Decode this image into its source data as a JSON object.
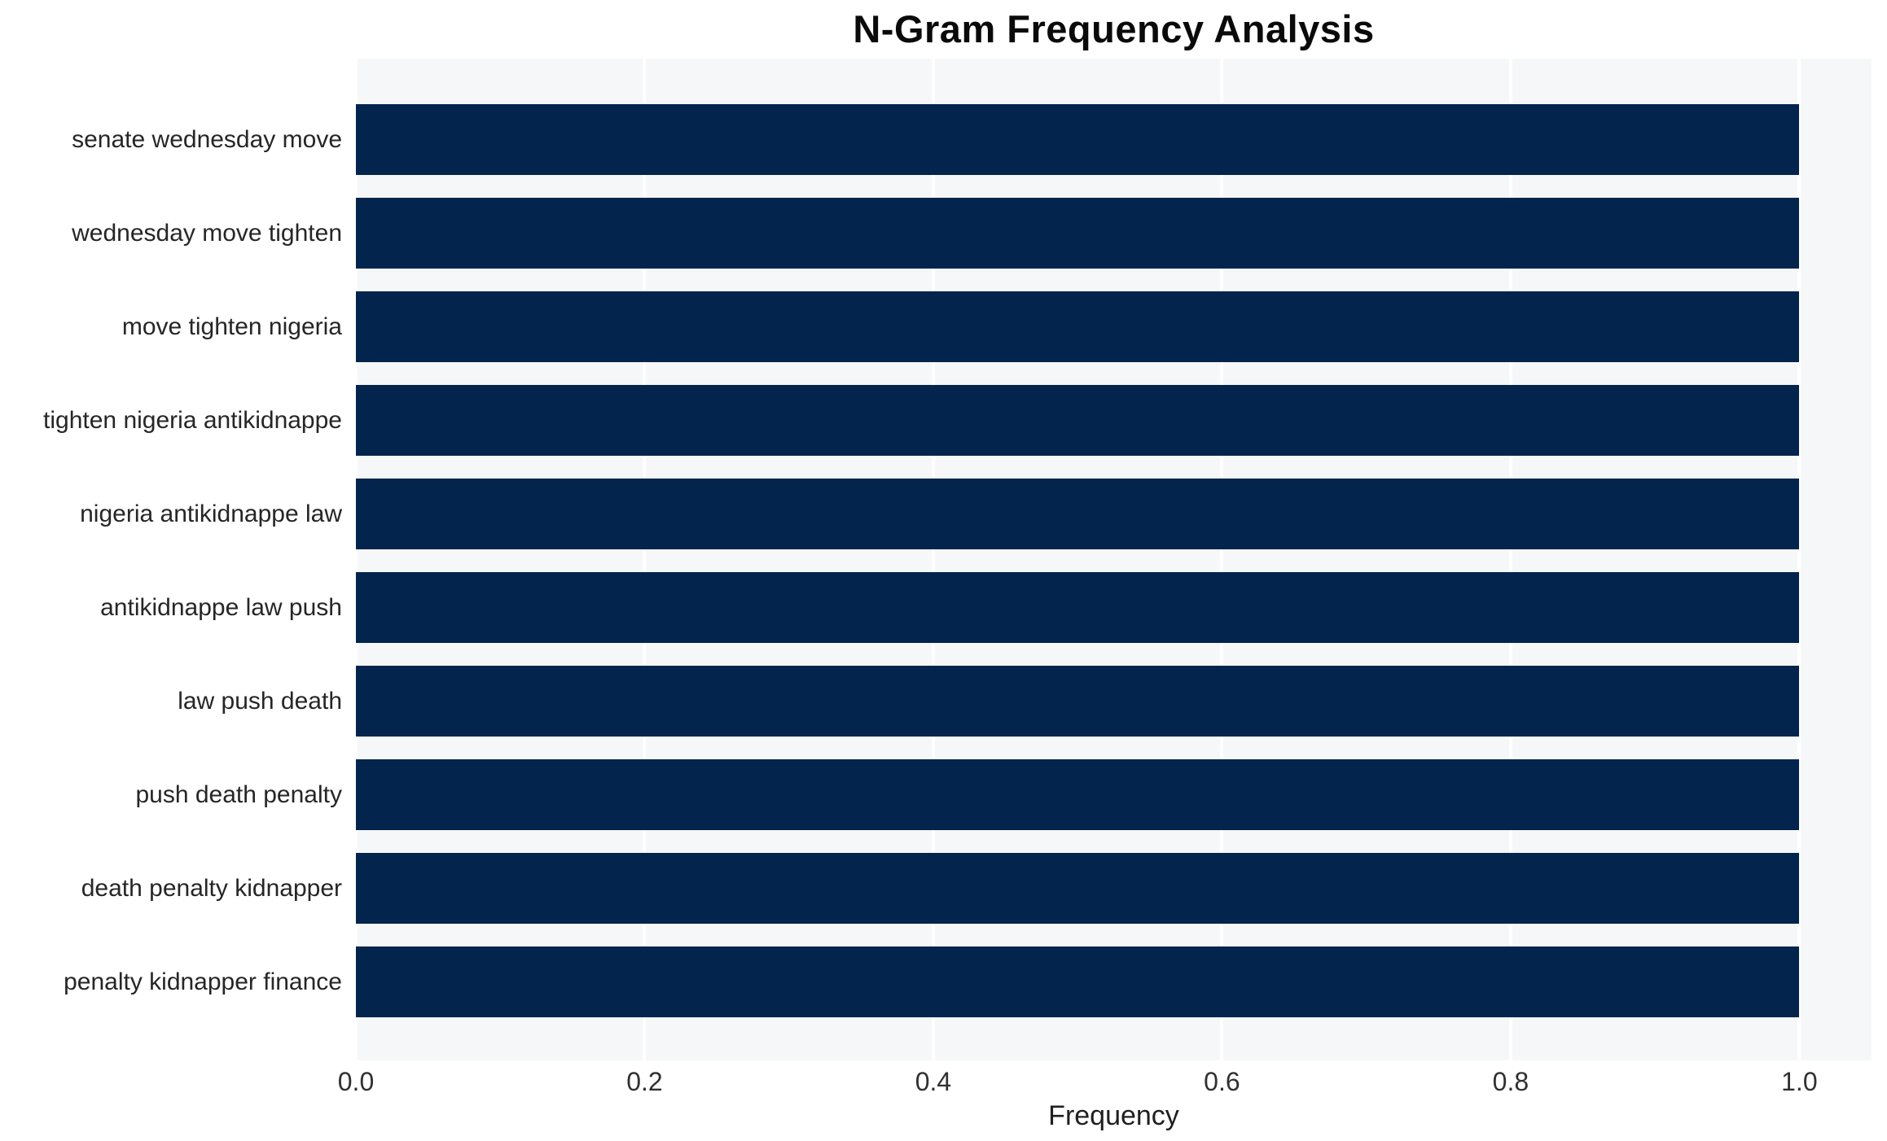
{
  "chart_data": {
    "type": "bar",
    "orientation": "horizontal",
    "title": "N-Gram Frequency Analysis",
    "categories": [
      "senate wednesday move",
      "wednesday move tighten",
      "move tighten nigeria",
      "tighten nigeria antikidnappe",
      "nigeria antikidnappe law",
      "antikidnappe law push",
      "law push death",
      "push death penalty",
      "death penalty kidnapper",
      "penalty kidnapper finance"
    ],
    "values": [
      1.0,
      1.0,
      1.0,
      1.0,
      1.0,
      1.0,
      1.0,
      1.0,
      1.0,
      1.0
    ],
    "xlabel": "Frequency",
    "ylabel": "",
    "x_ticks": [
      0.0,
      0.2,
      0.4,
      0.6,
      0.8,
      1.0
    ],
    "x_tick_labels": [
      "0.0",
      "0.2",
      "0.4",
      "0.6",
      "0.8",
      "1.0"
    ],
    "xlim": [
      0,
      1.05
    ],
    "grid": true,
    "legend": "none",
    "bar_color": "#02244d",
    "plot_background": "#f6f7f8",
    "grid_color": "#ffffff",
    "figure_background": "#ffffff"
  }
}
